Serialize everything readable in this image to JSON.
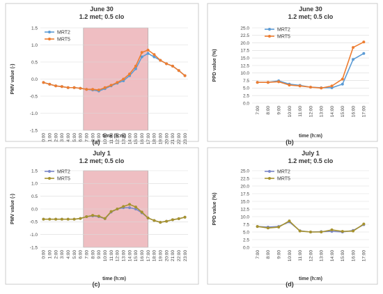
{
  "colors": {
    "mrt2": "#5B9BD5",
    "mrt5_orange": "#ED7D31",
    "mrt2_violet": "#7B87C8",
    "mrt5_olive": "#A6922E",
    "shade": "#E8A3A8",
    "grid": "#D9D9D9",
    "border": "#BFBFBF"
  },
  "chart_data": [
    {
      "id": "a",
      "caption": "(a)",
      "type": "line",
      "title": "June 30",
      "subtitle": "1.2 met; 0.5 clo",
      "xlabel": "time (h:m)",
      "ylabel": "PMV value (-)",
      "ylim": [
        -1.5,
        1.5
      ],
      "yticks": [
        "1.5",
        "1.0",
        "0.5",
        "0.0",
        "-0.5",
        "-1.0",
        "-1.5"
      ],
      "legend": "top-left",
      "grid": true,
      "shaded_range": [
        "7:00",
        "17:00"
      ],
      "categories": [
        "0:00",
        "1:00",
        "2:00",
        "3:00",
        "4:00",
        "5:00",
        "6:00",
        "7:00",
        "8:00",
        "9:00",
        "10:00",
        "11:00",
        "12:00",
        "13:00",
        "14:00",
        "15:00",
        "16:00",
        "17:00",
        "18:00",
        "19:00",
        "20:00",
        "21:00",
        "22:00",
        "23:00"
      ],
      "series": [
        {
          "name": "MRT2",
          "color_key": "mrt2",
          "values": [
            -0.1,
            -0.15,
            -0.2,
            -0.22,
            -0.25,
            -0.25,
            -0.27,
            -0.3,
            -0.32,
            -0.35,
            -0.28,
            -0.2,
            -0.12,
            -0.05,
            0.1,
            0.3,
            0.65,
            0.75,
            0.65,
            0.55,
            0.45,
            0.38,
            0.25,
            0.1
          ]
        },
        {
          "name": "MRT5",
          "color_key": "mrt5_orange",
          "values": [
            -0.1,
            -0.15,
            -0.2,
            -0.22,
            -0.25,
            -0.25,
            -0.27,
            -0.3,
            -0.3,
            -0.32,
            -0.25,
            -0.18,
            -0.1,
            0.0,
            0.15,
            0.38,
            0.78,
            0.85,
            0.72,
            0.55,
            0.45,
            0.38,
            0.25,
            0.1
          ]
        }
      ]
    },
    {
      "id": "b",
      "caption": "(b)",
      "type": "line",
      "title": "June 30",
      "subtitle": "1.2 met; 0.5 clo",
      "xlabel": "time (h:m)",
      "ylabel": "PPD value (%)",
      "ylim": [
        0,
        25
      ],
      "yticks": [
        "25.0",
        "22.5",
        "20.0",
        "17.5",
        "15.0",
        "12.5",
        "10.0",
        "7.5",
        "5.0",
        "2.5",
        "0.0"
      ],
      "legend": "top-left",
      "grid": true,
      "categories": [
        "7:00",
        "8:00",
        "9:00",
        "10:00",
        "11:00",
        "12:00",
        "13:00",
        "14:00",
        "15:00",
        "16:00",
        "17:00"
      ],
      "series": [
        {
          "name": "MRT2",
          "color_key": "mrt2",
          "values": [
            6.9,
            6.9,
            7.4,
            6.3,
            5.9,
            5.3,
            5.1,
            5.1,
            6.3,
            14.5,
            16.5
          ]
        },
        {
          "name": "MRT5",
          "color_key": "mrt5_orange",
          "values": [
            6.9,
            6.9,
            7.1,
            6.0,
            5.7,
            5.3,
            5.0,
            5.7,
            8.0,
            18.5,
            20.3
          ]
        }
      ]
    },
    {
      "id": "c",
      "caption": "(c)",
      "type": "line",
      "title": "July 1",
      "subtitle": "1.2 met; 0.5 clo",
      "xlabel": "time (h:m)",
      "ylabel": "PMV value (-)",
      "ylim": [
        -1.5,
        1.5
      ],
      "yticks": [
        "1.5",
        "1.0",
        "0.5",
        "0.0",
        "-0.5",
        "-1.0",
        "-1.5"
      ],
      "legend": "top-left",
      "grid": true,
      "shaded_range": [
        "7:00",
        "17:00"
      ],
      "categories": [
        "0:00",
        "1:00",
        "2:00",
        "3:00",
        "4:00",
        "5:00",
        "6:00",
        "7:00",
        "8:00",
        "9:00",
        "10:00",
        "11:00",
        "12:00",
        "13:00",
        "14:00",
        "15:00",
        "16:00",
        "17:00",
        "18:00",
        "19:00",
        "20:00",
        "21:00",
        "22:00",
        "23:00"
      ],
      "series": [
        {
          "name": "MRT2",
          "color_key": "mrt2_violet",
          "values": [
            -0.4,
            -0.4,
            -0.4,
            -0.4,
            -0.4,
            -0.4,
            -0.37,
            -0.3,
            -0.27,
            -0.3,
            -0.38,
            -0.12,
            0.0,
            0.05,
            0.05,
            0.0,
            -0.15,
            -0.35,
            -0.45,
            -0.52,
            -0.48,
            -0.42,
            -0.38,
            -0.32
          ]
        },
        {
          "name": "MRT5",
          "color_key": "mrt5_olive",
          "values": [
            -0.4,
            -0.4,
            -0.4,
            -0.4,
            -0.4,
            -0.4,
            -0.37,
            -0.3,
            -0.25,
            -0.28,
            -0.37,
            -0.1,
            0.0,
            0.1,
            0.18,
            0.08,
            -0.12,
            -0.35,
            -0.45,
            -0.52,
            -0.48,
            -0.42,
            -0.38,
            -0.32
          ]
        }
      ]
    },
    {
      "id": "d",
      "caption": "(d)",
      "type": "line",
      "title": "July 1",
      "subtitle": "1.2 met; 0.5 clo",
      "xlabel": "time (h:m)",
      "ylabel": "PPD value (%)",
      "ylim": [
        0,
        25
      ],
      "yticks": [
        "25.0",
        "22.5",
        "20.0",
        "17.5",
        "15.0",
        "12.5",
        "10.0",
        "7.5",
        "5.0",
        "2.5",
        "0.0"
      ],
      "legend": "top-left",
      "grid": true,
      "categories": [
        "7:00",
        "8:00",
        "9:00",
        "10:00",
        "11:00",
        "12:00",
        "13:00",
        "14:00",
        "15:00",
        "16:00",
        "17:00"
      ],
      "series": [
        {
          "name": "MRT2",
          "color_key": "mrt2_violet",
          "values": [
            6.8,
            6.6,
            6.8,
            8.3,
            5.4,
            5.0,
            5.1,
            5.2,
            5.0,
            5.5,
            7.4
          ]
        },
        {
          "name": "MRT5",
          "color_key": "mrt5_olive",
          "values": [
            6.8,
            6.3,
            6.6,
            8.6,
            5.3,
            5.0,
            5.0,
            5.7,
            5.2,
            5.3,
            7.6
          ]
        }
      ]
    }
  ]
}
